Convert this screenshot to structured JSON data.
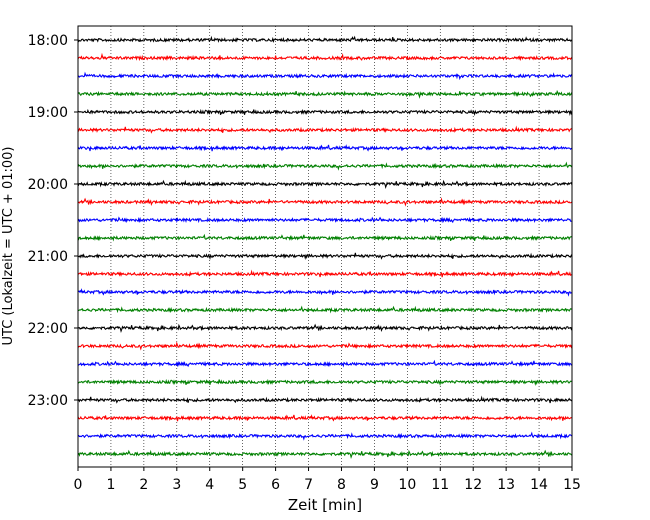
{
  "chart_data": {
    "type": "line",
    "title": "",
    "xlabel": "Zeit  [min]",
    "ylabel": "UTC (Lokalzeit = UTC + 01:00)",
    "xlim": [
      0,
      15
    ],
    "x_ticks": [
      0,
      1,
      2,
      3,
      4,
      5,
      6,
      7,
      8,
      9,
      10,
      11,
      12,
      13,
      14,
      15
    ],
    "y_ticks": [
      "18:00",
      "19:00",
      "20:00",
      "21:00",
      "22:00",
      "23:00"
    ],
    "grid": "vertical-dotted",
    "trace_times": [
      "18:00",
      "18:15",
      "18:30",
      "18:45",
      "19:00",
      "19:15",
      "19:30",
      "19:45",
      "20:00",
      "20:15",
      "20:30",
      "20:45",
      "21:00",
      "21:15",
      "21:30",
      "21:45",
      "22:00",
      "22:15",
      "22:30",
      "22:45",
      "23:00",
      "23:15",
      "23:30",
      "23:45"
    ],
    "trace_colors": [
      "#000000",
      "#ff0000",
      "#0000ff",
      "#008000"
    ]
  }
}
